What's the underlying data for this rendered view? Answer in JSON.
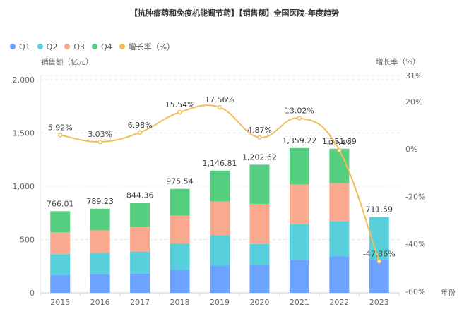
{
  "title": "【抗肿瘤药和免疫机能调节药】【销售额】全国医院-年度趋势",
  "legend": [
    {
      "label": "Q1",
      "color": "#6BA3FF"
    },
    {
      "label": "Q2",
      "color": "#58D0DC"
    },
    {
      "label": "Q3",
      "color": "#FBA98E"
    },
    {
      "label": "Q4",
      "color": "#55CE7F"
    },
    {
      "label": "增长率（%）",
      "color": "#F0BE5A"
    }
  ],
  "chart_data": {
    "type": "bar",
    "stacked": true,
    "title": "【抗肿瘤药和免疫机能调节药】【销售额】全国医院-年度趋势",
    "xlabel": "年份",
    "ylabel": "销售额（亿元）",
    "y2label": "增长率（%）",
    "categories": [
      "2015",
      "2016",
      "2017",
      "2018",
      "2019",
      "2020",
      "2021",
      "2022",
      "2023"
    ],
    "series": [
      {
        "name": "Q1",
        "color": "#6BA3FF",
        "values": [
          166,
          177,
          181,
          215,
          255,
          264,
          310,
          341,
          314
        ]
      },
      {
        "name": "Q2",
        "color": "#58D0DC",
        "values": [
          197,
          197,
          206,
          248,
          285,
          194,
          337,
          332,
          397.59
        ]
      },
      {
        "name": "Q3",
        "color": "#FBA98E",
        "values": [
          204,
          213,
          235,
          261,
          317,
          377,
          370,
          355,
          0
        ]
      },
      {
        "name": "Q4",
        "color": "#55CE7F",
        "values": [
          199.01,
          202.23,
          222.36,
          251.54,
          289.81,
          367.62,
          342.22,
          323.89,
          0
        ]
      }
    ],
    "totals": [
      766.01,
      789.23,
      844.36,
      975.54,
      1146.81,
      1202.62,
      1359.22,
      1351.89,
      711.59
    ],
    "total_labels": [
      "766.01",
      "789.23",
      "844.36",
      "975.54",
      "1,146.81",
      "1,202.62",
      "1,359.22",
      "1,351.89",
      "711.59"
    ],
    "line": {
      "name": "增长率（%）",
      "color": "#F0BE5A",
      "axis": "right",
      "values": [
        5.92,
        3.03,
        6.98,
        15.54,
        17.56,
        4.87,
        13.02,
        -0.54,
        -47.36
      ],
      "labels": [
        "5.92%",
        "3.03%",
        "6.98%",
        "15.54%",
        "17.56%",
        "4.87%",
        "13.02%",
        "-0.54%",
        "-47.36%"
      ]
    },
    "ylim": [
      0,
      2000
    ],
    "yticks": [
      0,
      500,
      1000,
      1500,
      2000
    ],
    "ytick_labels": [
      "0",
      "500",
      "1,000",
      "1,500",
      "2,000"
    ],
    "y2lim": [
      -60,
      31
    ],
    "y2ticks": [
      -60,
      -40,
      -20,
      0,
      20,
      31
    ],
    "y2tick_labels": [
      "-60%",
      "-40%",
      "-20%",
      "0%",
      "20%",
      "31%"
    ],
    "grid": true,
    "legend_position": "top-left"
  }
}
